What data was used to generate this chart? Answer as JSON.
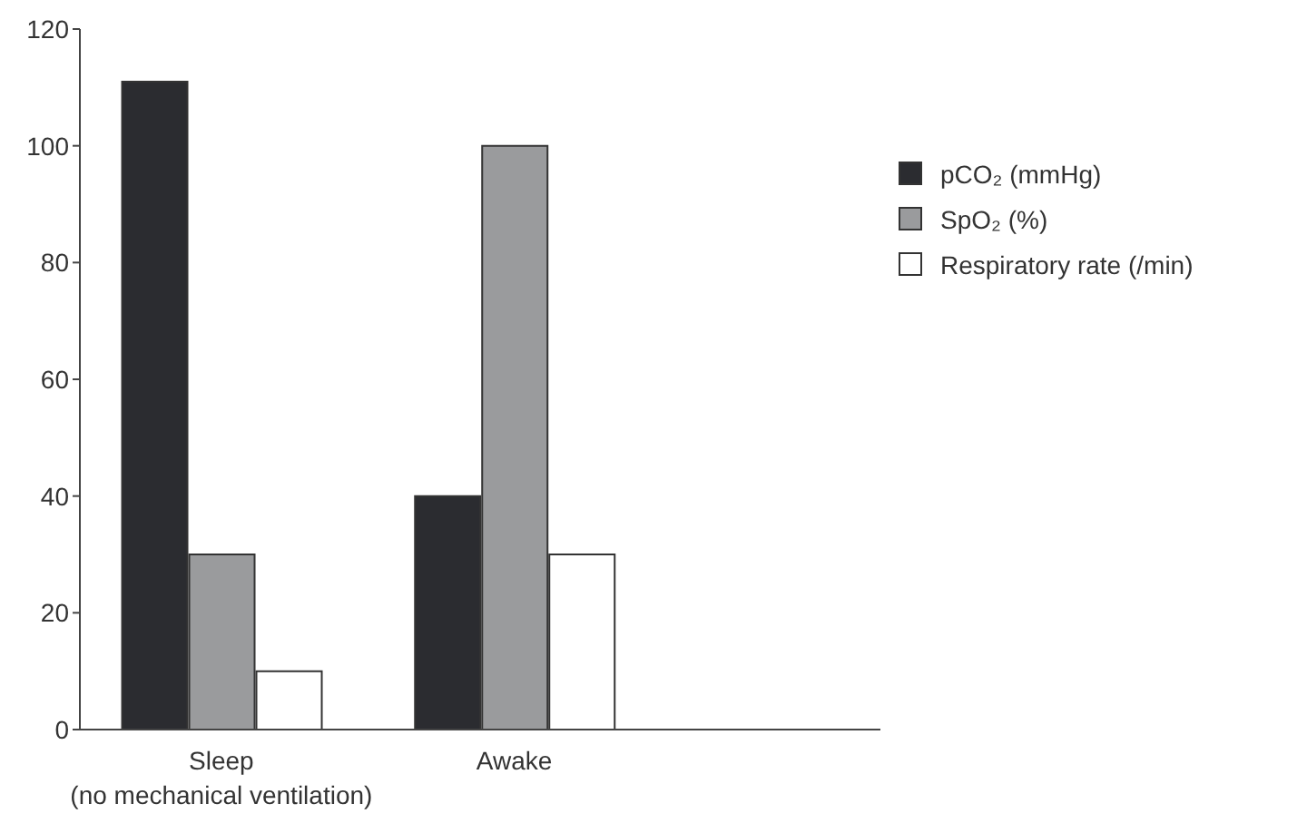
{
  "chart_data": {
    "type": "bar",
    "categories": [
      "Sleep (no mechanical ventilation)",
      "Awake"
    ],
    "series": [
      {
        "name": "pCO₂ (mmHg)",
        "color": "#2b2c30",
        "values": [
          111,
          40
        ]
      },
      {
        "name": "SpO₂ (%)",
        "color": "#9a9b9d",
        "values": [
          30,
          100
        ]
      },
      {
        "name": "Respiratory rate (/min)",
        "color": "#ffffff",
        "values": [
          10,
          30
        ]
      }
    ],
    "ylim": [
      0,
      120
    ],
    "yticks": [
      0,
      20,
      40,
      60,
      80,
      100,
      120
    ],
    "grid": false,
    "legend": "top right"
  }
}
